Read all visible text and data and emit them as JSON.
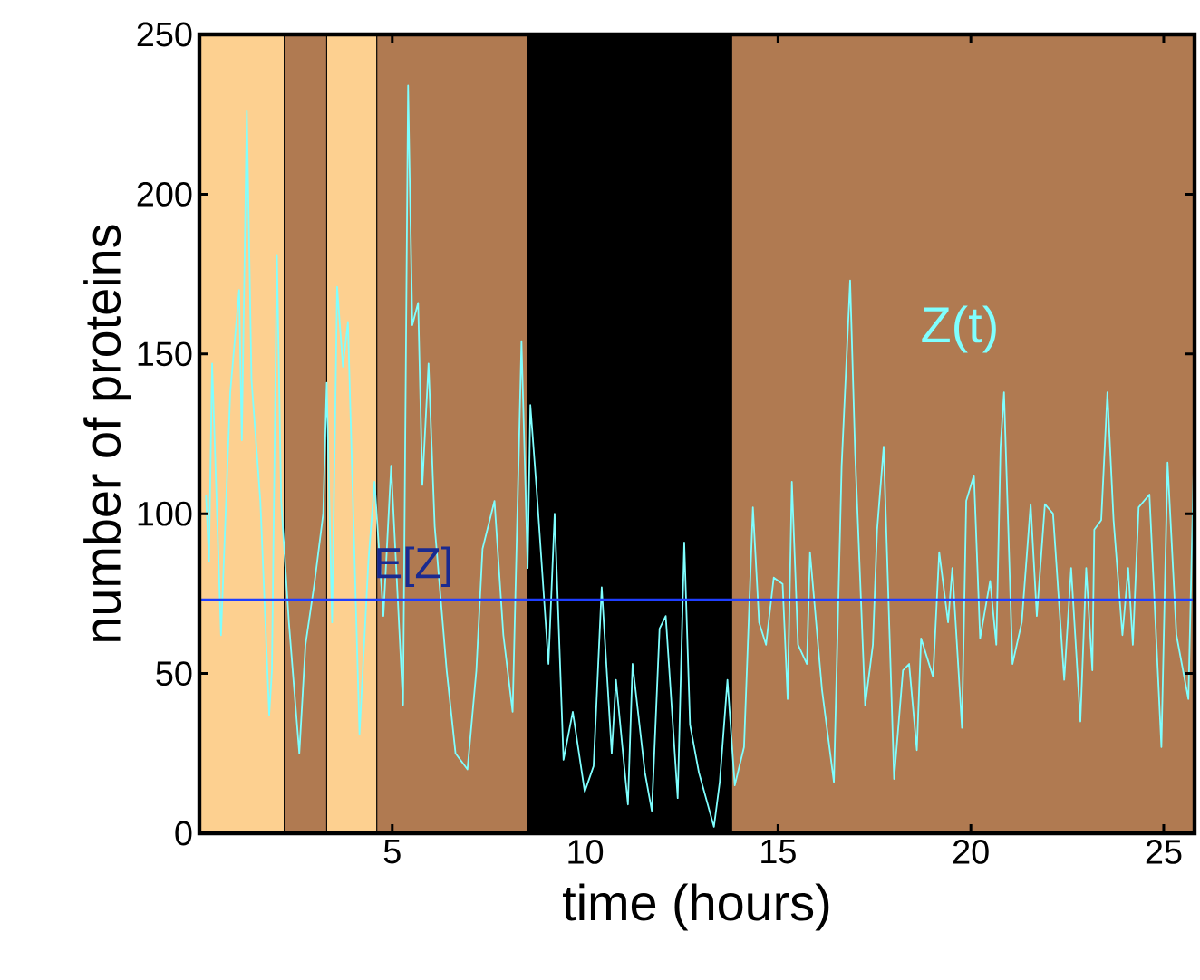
{
  "chart_data": {
    "type": "line",
    "xlabel": "time (hours)",
    "ylabel": "number of proteins",
    "xlim": [
      0,
      25.8
    ],
    "ylim": [
      0,
      250
    ],
    "xticks": [
      5,
      10,
      15,
      20,
      25
    ],
    "yticks": [
      0,
      50,
      100,
      150,
      200,
      250
    ],
    "series": [
      {
        "name": "Z(t)",
        "color": "#7fffff",
        "x": [
          0.17,
          0.25,
          0.33,
          0.56,
          0.8,
          1.03,
          1.1,
          1.23,
          1.35,
          1.58,
          1.81,
          1.88,
          2.01,
          2.12,
          2.32,
          2.59,
          2.75,
          2.98,
          3.21,
          3.3,
          3.44,
          3.57,
          3.72,
          3.85,
          4.15,
          4.38,
          4.54,
          4.77,
          4.97,
          5.28,
          5.41,
          5.52,
          5.67,
          5.78,
          5.94,
          6.1,
          6.41,
          6.64,
          6.95,
          7.18,
          7.34,
          7.65,
          7.88,
          8.12,
          8.35,
          8.51,
          8.58,
          8.74,
          9.05,
          9.21,
          9.44,
          9.68,
          9.99,
          10.22,
          10.43,
          10.69,
          10.8,
          11.11,
          11.23,
          11.55,
          11.73,
          11.93,
          12.09,
          12.4,
          12.57,
          12.72,
          12.95,
          13.34,
          13.49,
          13.69,
          13.88,
          14.12,
          14.35,
          14.51,
          14.69,
          14.89,
          15.12,
          15.25,
          15.36,
          15.52,
          15.75,
          15.83,
          16.14,
          16.45,
          16.65,
          16.87,
          17.0,
          17.26,
          17.46,
          17.57,
          17.74,
          18.01,
          18.24,
          18.4,
          18.6,
          18.71,
          19.02,
          19.18,
          19.41,
          19.52,
          19.77,
          19.88,
          20.08,
          20.24,
          20.5,
          20.66,
          20.77,
          20.86,
          21.08,
          21.32,
          21.55,
          21.71,
          21.92,
          22.13,
          22.42,
          22.6,
          22.84,
          22.99,
          23.15,
          23.2,
          23.38,
          23.54,
          23.7,
          23.93,
          24.08,
          24.2,
          24.35,
          24.63,
          24.94,
          25.1,
          25.33,
          25.64,
          25.78
        ],
        "values": [
          106,
          85,
          147,
          62,
          138,
          170,
          123,
          226,
          142,
          104,
          37,
          51,
          181,
          104,
          66,
          25,
          59,
          78,
          100,
          141,
          66,
          171,
          146,
          160,
          31,
          85,
          110,
          68,
          115,
          40,
          234,
          159,
          166,
          109,
          147,
          96,
          51,
          25,
          20,
          51,
          89,
          104,
          62,
          38,
          154,
          83,
          134,
          108,
          53,
          100,
          23,
          38,
          13,
          21,
          77,
          25,
          48,
          9,
          53,
          19,
          7,
          64,
          68,
          11,
          91,
          34,
          19,
          2,
          16,
          48,
          15,
          27,
          102,
          66,
          59,
          80,
          78,
          42,
          110,
          59,
          53,
          88,
          45,
          16,
          115,
          173,
          119,
          40,
          59,
          95,
          121,
          17,
          51,
          53,
          26,
          61,
          49,
          88,
          66,
          83,
          33,
          104,
          112,
          61,
          79,
          59,
          121,
          138,
          53,
          66,
          103,
          68,
          103,
          100,
          48,
          83,
          35,
          83,
          51,
          95,
          98,
          138,
          98,
          62,
          83,
          59,
          102,
          106,
          27,
          116,
          62,
          42,
          116
        ]
      }
    ],
    "ref_lines": [
      {
        "axis": "y",
        "value": 73,
        "label": "E[Z]",
        "color": "#1f3fff"
      }
    ],
    "bands": [
      {
        "axis": "x",
        "from": 0,
        "to": 2.2,
        "color": "#fdd090"
      },
      {
        "axis": "x",
        "from": 2.2,
        "to": 3.3,
        "color": "#b07a51"
      },
      {
        "axis": "x",
        "from": 3.3,
        "to": 4.6,
        "color": "#fdd090"
      },
      {
        "axis": "x",
        "from": 4.6,
        "to": 8.5,
        "color": "#b07a51"
      },
      {
        "axis": "x",
        "from": 8.5,
        "to": 13.8,
        "color": "#000000"
      },
      {
        "axis": "x",
        "from": 13.8,
        "to": 25.8,
        "color": "#b07a51"
      }
    ]
  }
}
